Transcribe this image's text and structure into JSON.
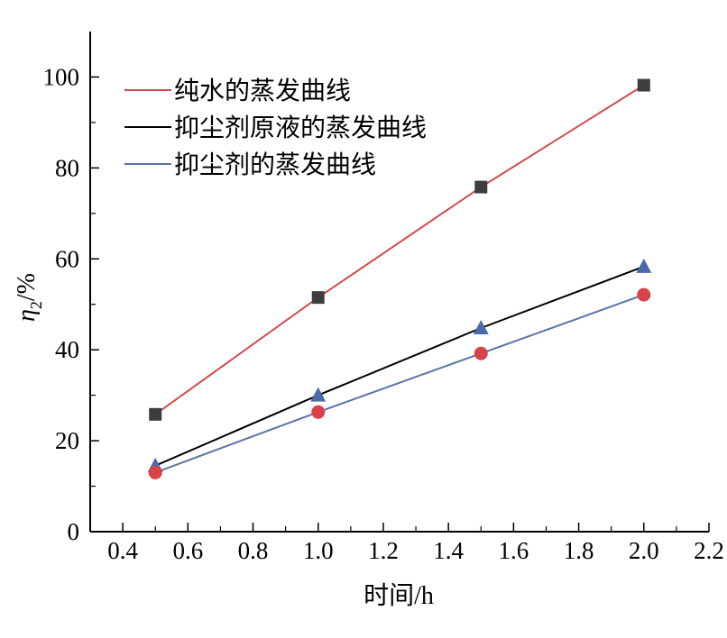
{
  "chart_data": {
    "type": "line",
    "xlabel": "时间/h",
    "ylabel": {
      "main": "η",
      "sub": "2",
      "tail": "/%"
    },
    "xlim": [
      0.3,
      2.2
    ],
    "ylim": [
      0,
      110
    ],
    "xticks": [
      "0.4",
      "0.6",
      "0.8",
      "1.0",
      "1.2",
      "1.4",
      "1.6",
      "1.8",
      "2.0",
      "2.2"
    ],
    "yticks": [
      "0",
      "20",
      "40",
      "60",
      "80",
      "100"
    ],
    "legend_position": "top-left",
    "series": [
      {
        "name": "纯水的蒸发曲线",
        "color": "#d24b4e",
        "marker": "square",
        "marker_color": "#3d3d3d",
        "x": [
          0.5,
          1.0,
          1.5,
          2.0
        ],
        "y": [
          25.8,
          51.5,
          75.8,
          98.2
        ]
      },
      {
        "name": "抑尘剂原液的蒸发曲线",
        "color": "#000000",
        "marker": "triangle",
        "marker_color": "#4a6aa8",
        "x": [
          0.5,
          1.0,
          1.5,
          2.0
        ],
        "y": [
          14.5,
          30.0,
          44.8,
          58.3
        ]
      },
      {
        "name": "抑尘剂的蒸发曲线",
        "color": "#5a73a8",
        "marker": "circle",
        "marker_color": "#d8434a",
        "x": [
          0.5,
          1.0,
          1.5,
          2.0
        ],
        "y": [
          13.0,
          26.3,
          39.2,
          52.1
        ]
      }
    ]
  }
}
